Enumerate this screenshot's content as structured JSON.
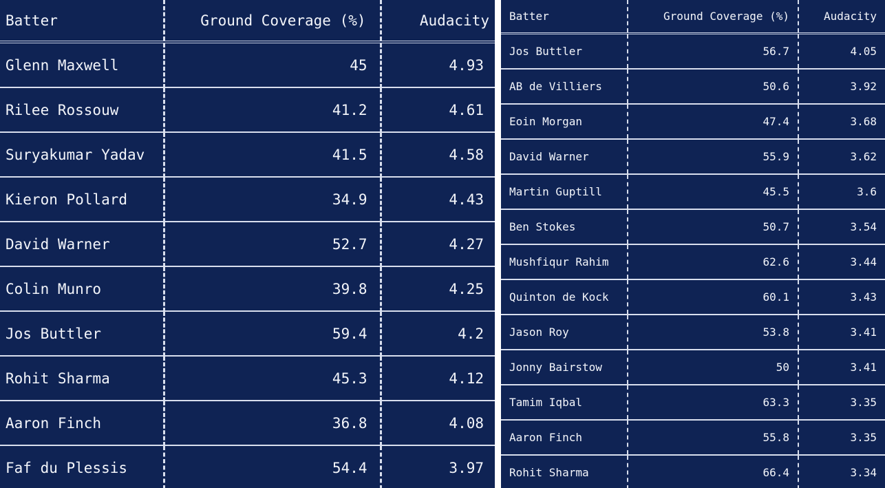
{
  "left_table": {
    "headers": {
      "batter": "Batter",
      "ground_coverage": "Ground Coverage (%)",
      "audacity": "Audacity"
    },
    "rows": [
      {
        "batter": "Glenn Maxwell",
        "ground_coverage": "45",
        "audacity": "4.93"
      },
      {
        "batter": "Rilee Rossouw",
        "ground_coverage": "41.2",
        "audacity": "4.61"
      },
      {
        "batter": "Suryakumar Yadav",
        "ground_coverage": "41.5",
        "audacity": "4.58"
      },
      {
        "batter": "Kieron Pollard",
        "ground_coverage": "34.9",
        "audacity": "4.43"
      },
      {
        "batter": "David Warner",
        "ground_coverage": "52.7",
        "audacity": "4.27"
      },
      {
        "batter": "Colin Munro",
        "ground_coverage": "39.8",
        "audacity": "4.25"
      },
      {
        "batter": "Jos Buttler",
        "ground_coverage": "59.4",
        "audacity": "4.2"
      },
      {
        "batter": "Rohit Sharma",
        "ground_coverage": "45.3",
        "audacity": "4.12"
      },
      {
        "batter": "Aaron Finch",
        "ground_coverage": "36.8",
        "audacity": "4.08"
      },
      {
        "batter": "Faf du Plessis",
        "ground_coverage": "54.4",
        "audacity": "3.97"
      }
    ]
  },
  "right_table": {
    "headers": {
      "batter": "Batter",
      "ground_coverage": "Ground Coverage (%)",
      "audacity": "Audacity"
    },
    "rows": [
      {
        "batter": "Jos Buttler",
        "ground_coverage": "56.7",
        "audacity": "4.05"
      },
      {
        "batter": "AB de Villiers",
        "ground_coverage": "50.6",
        "audacity": "3.92"
      },
      {
        "batter": "Eoin Morgan",
        "ground_coverage": "47.4",
        "audacity": "3.68"
      },
      {
        "batter": "David Warner",
        "ground_coverage": "55.9",
        "audacity": "3.62"
      },
      {
        "batter": "Martin Guptill",
        "ground_coverage": "45.5",
        "audacity": "3.6"
      },
      {
        "batter": "Ben Stokes",
        "ground_coverage": "50.7",
        "audacity": "3.54"
      },
      {
        "batter": "Mushfiqur Rahim",
        "ground_coverage": "62.6",
        "audacity": "3.44"
      },
      {
        "batter": "Quinton de Kock",
        "ground_coverage": "60.1",
        "audacity": "3.43"
      },
      {
        "batter": "Jason Roy",
        "ground_coverage": "53.8",
        "audacity": "3.41"
      },
      {
        "batter": "Jonny Bairstow",
        "ground_coverage": "50",
        "audacity": "3.41"
      },
      {
        "batter": "Tamim Iqbal",
        "ground_coverage": "63.3",
        "audacity": "3.35"
      },
      {
        "batter": "Aaron Finch",
        "ground_coverage": "55.8",
        "audacity": "3.35"
      },
      {
        "batter": "Rohit Sharma",
        "ground_coverage": "66.4",
        "audacity": "3.34"
      }
    ]
  },
  "colors": {
    "background": "#0f2354",
    "text": "#f3f5fa",
    "gridline": "#d9dfee"
  }
}
